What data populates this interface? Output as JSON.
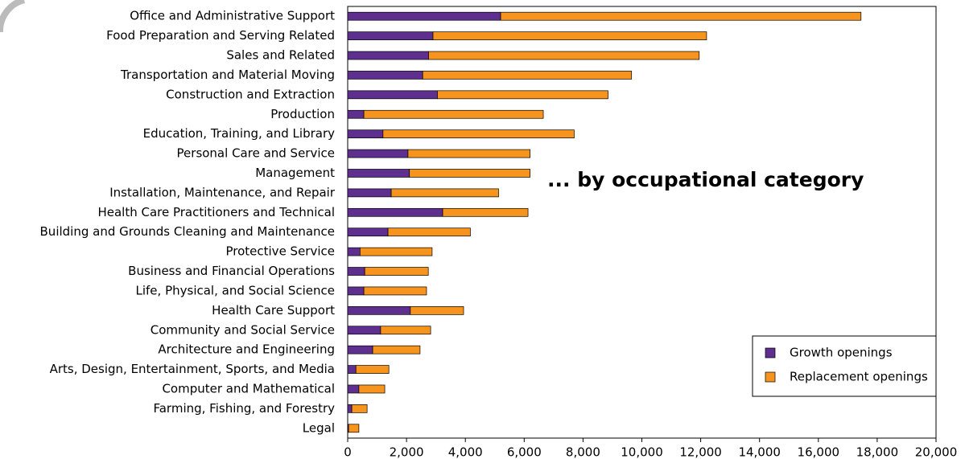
{
  "chart_data": {
    "type": "stacked_barh",
    "annotation": "... by occupational category",
    "categories": [
      "Office and Administrative Support",
      "Food Preparation and Serving Related",
      "Sales and Related",
      "Transportation and Material Moving",
      "Construction and Extraction",
      "Production",
      "Education, Training, and Library",
      "Personal Care and Service",
      "Management",
      "Installation, Maintenance, and Repair",
      "Health Care Practitioners and Technical",
      "Building and Grounds Cleaning and Maintenance",
      "Protective Service",
      "Business and Financial Operations",
      "Life, Physical, and Social Science",
      "Health Care Support",
      "Community and Social Service",
      "Architecture and Engineering",
      "Arts, Design, Entertainment, Sports, and Media",
      "Computer and Mathematical",
      "Farming, Fishing, and Forestry",
      "Legal"
    ],
    "series": [
      {
        "name": "Growth openings",
        "color": "#5e2f8e",
        "values": [
          5200,
          2900,
          2750,
          2550,
          3050,
          550,
          1200,
          2050,
          2100,
          1480,
          3230,
          1370,
          420,
          580,
          550,
          2130,
          1120,
          850,
          280,
          380,
          140,
          30
        ]
      },
      {
        "name": "Replacement openings",
        "color": "#f7941d",
        "values": [
          12250,
          9300,
          9200,
          7100,
          5800,
          6100,
          6500,
          4150,
          4100,
          3650,
          2900,
          2800,
          2450,
          2160,
          2130,
          1810,
          1700,
          1610,
          1120,
          880,
          520,
          350
        ]
      }
    ],
    "xlim": [
      0,
      20000
    ],
    "xticks": [
      0,
      {
        "value": 2000,
        "label": "2,000"
      },
      {
        "value": 4000,
        "label": "4,000"
      },
      {
        "value": 6000,
        "label": "6,000"
      },
      {
        "value": 8000,
        "label": "8,000"
      },
      {
        "value": 10000,
        "label": "10,000"
      },
      {
        "value": 12000,
        "label": "12,000"
      },
      {
        "value": 14000,
        "label": "14,000"
      },
      {
        "value": 16000,
        "label": "16,000"
      },
      {
        "value": 18000,
        "label": "18,000"
      },
      {
        "value": 20000,
        "label": "20,000"
      }
    ],
    "legend": "lower right"
  }
}
